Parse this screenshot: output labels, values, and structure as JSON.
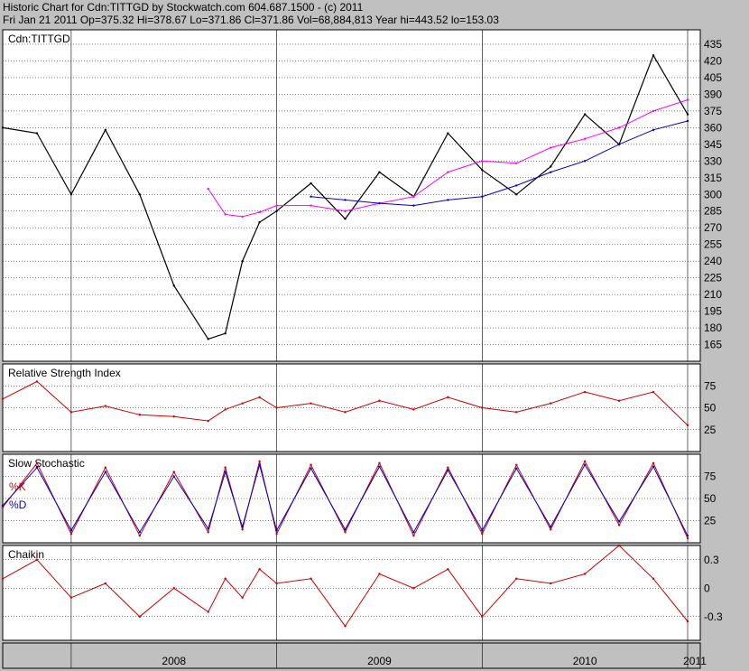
{
  "header": {
    "line1": "Historic Chart for Cdn:TITTGD by Stockwatch.com 604.687.1500 - (c) 2011",
    "line2": "Fri Jan 21 2011   Op=375.32   Hi=378.67   Lo=371.86   Cl=371.86   Vol=68,884,813   Year hi=443.52   lo=153.03"
  },
  "colors": {
    "price": "#000000",
    "ma_short": "#ff00ff",
    "ma_long": "#0000c0",
    "rsi": "#cc0000",
    "stoch_k": "#cc0000",
    "stoch_d": "#0000cc",
    "chaikin": "#cc0000",
    "grid": "#000000",
    "panel_bg": "#ffffff",
    "frame_bg": "#c0c0c0"
  },
  "chart_data": [
    {
      "type": "line",
      "panel": "price",
      "title": "Cdn:TITTGD",
      "x_range": [
        "2007-09",
        "2011-01"
      ],
      "ylim": [
        150,
        448
      ],
      "y_ticks": [
        165,
        180,
        195,
        210,
        225,
        240,
        255,
        270,
        285,
        300,
        315,
        330,
        345,
        360,
        375,
        390,
        405,
        420,
        435
      ],
      "grid": true,
      "x": [
        "2007-09",
        "2007-11",
        "2008-01",
        "2008-03",
        "2008-05",
        "2008-07",
        "2008-09",
        "2008-10",
        "2008-11",
        "2008-12",
        "2009-01",
        "2009-03",
        "2009-05",
        "2009-07",
        "2009-09",
        "2009-11",
        "2010-01",
        "2010-03",
        "2010-05",
        "2010-07",
        "2010-09",
        "2010-11",
        "2011-01"
      ],
      "series": [
        {
          "values": [
            360,
            355,
            300,
            358,
            300,
            218,
            170,
            175,
            240,
            275,
            285,
            310,
            278,
            320,
            298,
            355,
            322,
            300,
            325,
            372,
            345,
            425,
            372
          ]
        },
        {
          "values": [
            null,
            null,
            null,
            null,
            null,
            null,
            305,
            282,
            280,
            284,
            290,
            290,
            285,
            292,
            298,
            320,
            330,
            328,
            342,
            350,
            360,
            375,
            385
          ]
        },
        {
          "values": [
            null,
            null,
            null,
            null,
            null,
            null,
            null,
            null,
            null,
            null,
            null,
            298,
            295,
            292,
            290,
            295,
            298,
            308,
            320,
            330,
            345,
            358,
            366
          ]
        }
      ]
    },
    {
      "type": "line",
      "panel": "rsi",
      "title": "Relative Strength Index",
      "ylim": [
        0,
        100
      ],
      "y_ticks": [
        25,
        50,
        75
      ],
      "x": [
        "2007-09",
        "2007-11",
        "2008-01",
        "2008-03",
        "2008-05",
        "2008-07",
        "2008-09",
        "2008-10",
        "2008-11",
        "2008-12",
        "2009-01",
        "2009-03",
        "2009-05",
        "2009-07",
        "2009-09",
        "2009-11",
        "2010-01",
        "2010-03",
        "2010-05",
        "2010-07",
        "2010-09",
        "2010-11",
        "2011-01"
      ],
      "series": [
        {
          "values": [
            60,
            80,
            45,
            52,
            42,
            40,
            35,
            48,
            55,
            62,
            50,
            55,
            45,
            58,
            48,
            62,
            50,
            45,
            55,
            68,
            58,
            68,
            30
          ]
        }
      ]
    },
    {
      "type": "line",
      "panel": "stochastic",
      "title": "Slow Stochastic",
      "legend": [
        "%K",
        "%D"
      ],
      "ylim": [
        0,
        100
      ],
      "y_ticks": [
        25,
        50,
        75
      ],
      "x": [
        "2007-09",
        "2007-11",
        "2008-01",
        "2008-03",
        "2008-05",
        "2008-07",
        "2008-09",
        "2008-10",
        "2008-11",
        "2008-12",
        "2009-01",
        "2009-03",
        "2009-05",
        "2009-07",
        "2009-09",
        "2009-11",
        "2010-01",
        "2010-03",
        "2010-05",
        "2010-07",
        "2010-09",
        "2010-11",
        "2011-01"
      ],
      "series": [
        {
          "name": "%K",
          "values": [
            40,
            90,
            10,
            85,
            8,
            80,
            12,
            85,
            15,
            92,
            10,
            88,
            12,
            90,
            8,
            85,
            10,
            88,
            15,
            92,
            20,
            90,
            5
          ]
        },
        {
          "name": "%D",
          "values": [
            42,
            85,
            14,
            80,
            12,
            75,
            16,
            80,
            18,
            88,
            14,
            84,
            15,
            86,
            12,
            82,
            14,
            84,
            18,
            88,
            24,
            86,
            8
          ]
        }
      ]
    },
    {
      "type": "line",
      "panel": "chaikin",
      "title": "Chaikin",
      "ylim": [
        -0.55,
        0.45
      ],
      "y_ticks": [
        0.3,
        0,
        -0.3
      ],
      "y_tick_labels": [
        "0.3",
        "0",
        "-0.3"
      ],
      "x": [
        "2007-09",
        "2007-11",
        "2008-01",
        "2008-03",
        "2008-05",
        "2008-07",
        "2008-09",
        "2008-10",
        "2008-11",
        "2008-12",
        "2009-01",
        "2009-03",
        "2009-05",
        "2009-07",
        "2009-09",
        "2009-11",
        "2010-01",
        "2010-03",
        "2010-05",
        "2010-07",
        "2010-09",
        "2010-11",
        "2011-01"
      ],
      "series": [
        {
          "values": [
            0.1,
            0.3,
            -0.1,
            0.05,
            -0.3,
            0.0,
            -0.25,
            0.1,
            -0.1,
            0.2,
            0.05,
            0.1,
            -0.4,
            0.15,
            0.0,
            0.2,
            -0.3,
            0.1,
            0.05,
            0.15,
            0.45,
            0.1,
            -0.35
          ]
        }
      ]
    }
  ],
  "x_axis": {
    "labels": [
      "2008",
      "2009",
      "2010",
      "2011"
    ]
  }
}
